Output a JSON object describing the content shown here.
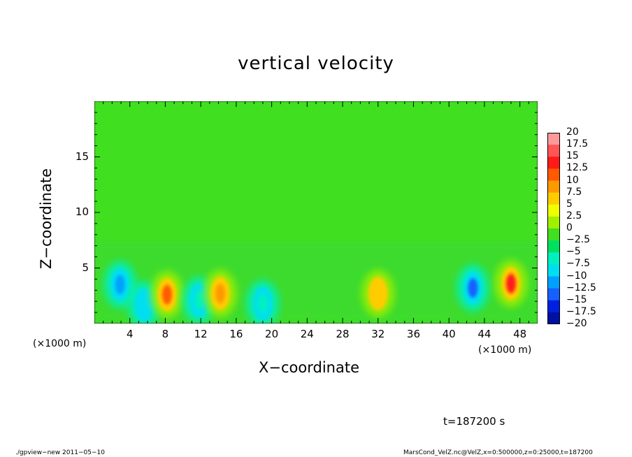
{
  "chart_data": {
    "type": "heatmap",
    "title": "vertical velocity",
    "xlabel": "X−coordinate",
    "ylabel": "Z−coordinate",
    "x_unit_left": "(×1000 m)",
    "x_unit_right": "(×1000 m)",
    "xlim": [
      0,
      50
    ],
    "ylim": [
      0,
      20
    ],
    "x_ticks": [
      4,
      8,
      12,
      16,
      20,
      24,
      28,
      32,
      36,
      40,
      44,
      48
    ],
    "y_ticks": [
      5,
      10,
      15
    ],
    "colorbar": {
      "levels": [
        "20",
        "17.5",
        "15",
        "12.5",
        "10",
        "7.5",
        "5",
        "2.5",
        "0",
        "−2.5",
        "−5",
        "−7.5",
        "−10",
        "−12.5",
        "−15",
        "−17.5",
        "−20"
      ],
      "colors": [
        "#ff9999",
        "#ff5555",
        "#ff1a1a",
        "#ff5a00",
        "#ff9900",
        "#ffcc00",
        "#f0ff00",
        "#a0f000",
        "#40e020",
        "#00e060",
        "#00f0c0",
        "#00dff0",
        "#00a0ff",
        "#1560ff",
        "#0020e0",
        "#0010a0",
        "#6a10c0"
      ]
    },
    "features": [
      {
        "x": 2.9,
        "z": 3.5,
        "value": -10
      },
      {
        "x": 5.6,
        "z": 1.7,
        "value": -7.5
      },
      {
        "x": 8.2,
        "z": 2.6,
        "value": 12.5
      },
      {
        "x": 11.8,
        "z": 2.1,
        "value": -5
      },
      {
        "x": 14.2,
        "z": 2.7,
        "value": 10
      },
      {
        "x": 19.0,
        "z": 1.8,
        "value": -5
      },
      {
        "x": 32.0,
        "z": 2.7,
        "value": 7.5
      },
      {
        "x": 42.7,
        "z": 3.2,
        "value": -12.5
      },
      {
        "x": 47.0,
        "z": 3.6,
        "value": 15
      }
    ]
  },
  "time_label": "t=187200 s",
  "footer_left": "./gpview−new   2011−05−10",
  "footer_right": "MarsCond_VelZ.nc@VelZ,x=0:500000,z=0:25000,t=187200"
}
